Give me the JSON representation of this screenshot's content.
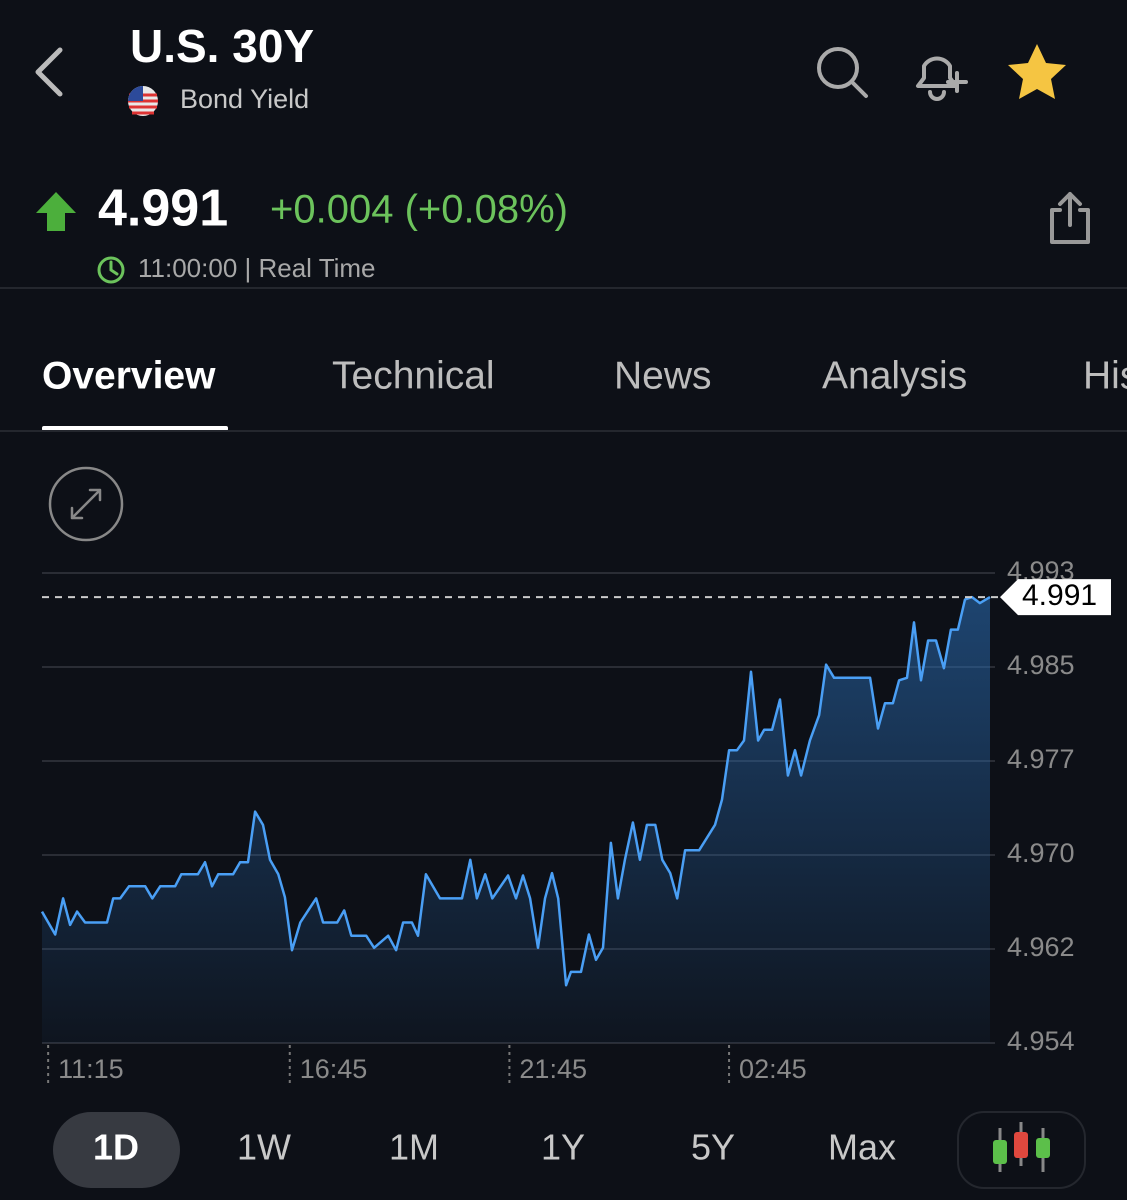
{
  "header": {
    "title": "U.S. 30Y",
    "subtitle": "Bond Yield"
  },
  "quote": {
    "price": "4.991",
    "change": "+0.004 (+0.08%)",
    "time": "11:00:00 | Real Time"
  },
  "tabs": [
    "Overview",
    "Technical",
    "News",
    "Analysis",
    "His"
  ],
  "ranges": [
    "1D",
    "1W",
    "1M",
    "1Y",
    "5Y",
    "Max"
  ],
  "chart_data": {
    "type": "line",
    "x": [
      -0.14,
      0.16,
      0.34,
      0.5,
      0.66,
      0.84,
      1.34,
      1.48,
      1.64,
      1.84,
      2.21,
      2.37,
      2.55,
      2.89,
      3.03,
      3.41,
      3.57,
      3.73,
      3.87,
      4.21,
      4.37,
      4.55,
      4.71,
      4.89,
      5.05,
      5.24,
      5.39,
      5.55,
      5.74,
      5.92,
      6.1,
      6.26,
      6.58,
      6.74,
      6.9,
      7.24,
      7.42,
      7.74,
      7.92,
      8.08,
      8.28,
      8.42,
      8.6,
      8.92,
      9.42,
      9.61,
      9.76,
      9.95,
      10.11,
      10.47,
      10.65,
      10.81,
      10.97,
      11.15,
      11.31,
      11.47,
      11.61,
      11.79,
      11.9,
      12.13,
      12.31,
      12.47,
      12.63,
      12.81,
      12.97,
      13.13,
      13.31,
      13.47,
      13.63,
      13.82,
      13.98,
      14.16,
      14.32,
      14.5,
      14.82,
      15.18,
      15.34,
      15.5,
      15.68,
      15.84,
      16.0,
      16.16,
      16.3,
      16.48,
      16.66,
      16.84,
      17.0,
      17.14,
      17.34,
      17.55,
      17.71,
      17.89,
      18.71,
      18.89,
      19.05,
      19.23,
      19.37,
      19.55,
      19.71,
      19.87,
      20.03,
      20.21,
      20.39,
      20.55,
      20.71,
      20.87,
      21.03,
      21.21,
      21.44
    ],
    "series": [
      {
        "name": "U.S. 30Y",
        "color": "#4a9ff5",
        "values": [
          4.9649,
          4.963,
          4.966,
          4.9638,
          4.9649,
          4.964,
          4.964,
          4.966,
          4.966,
          4.967,
          4.967,
          4.966,
          4.967,
          4.967,
          4.968,
          4.968,
          4.969,
          4.967,
          4.968,
          4.968,
          4.969,
          4.969,
          4.9732,
          4.9721,
          4.9692,
          4.968,
          4.9661,
          4.9617,
          4.964,
          4.965,
          4.966,
          4.964,
          4.964,
          4.965,
          4.9629,
          4.9629,
          4.9619,
          4.9629,
          4.9617,
          4.964,
          4.964,
          4.9629,
          4.968,
          4.966,
          4.966,
          4.9692,
          4.966,
          4.968,
          4.966,
          4.9679,
          4.966,
          4.9679,
          4.966,
          4.9619,
          4.966,
          4.9681,
          4.966,
          4.9588,
          4.9599,
          4.9599,
          4.963,
          4.9609,
          4.9619,
          4.9706,
          4.966,
          4.9692,
          4.9723,
          4.9692,
          4.9721,
          4.9721,
          4.9692,
          4.9681,
          4.966,
          4.97,
          4.97,
          4.9721,
          4.9742,
          4.9783,
          4.9783,
          4.9791,
          4.9848,
          4.9791,
          4.98,
          4.98,
          4.9825,
          4.9762,
          4.9783,
          4.9762,
          4.9791,
          4.9812,
          4.9854,
          4.9843,
          4.9843,
          4.9801,
          4.9822,
          4.9822,
          4.9841,
          4.9843,
          4.9889,
          4.9841,
          4.9874,
          4.9874,
          4.9851,
          4.9883,
          4.9883,
          4.9908,
          4.991,
          4.9905,
          4.991
        ]
      }
    ],
    "xlim": [
      -0.14,
      21.44
    ],
    "xticks": [
      {
        "value": 0,
        "label": "11:15"
      },
      {
        "value": 5.5,
        "label": "16:45"
      },
      {
        "value": 10.5,
        "label": "21:45"
      },
      {
        "value": 15.5,
        "label": "02:45"
      }
    ],
    "ylim": [
      4.954,
      4.993
    ],
    "yticks": [
      {
        "value": 4.954,
        "label": "4.954"
      },
      {
        "value": 4.9618,
        "label": "4.962"
      },
      {
        "value": 4.9696,
        "label": "4.970"
      },
      {
        "value": 4.9774,
        "label": "4.977"
      },
      {
        "value": 4.9852,
        "label": "4.985"
      },
      {
        "value": 4.993,
        "label": "4.993"
      }
    ],
    "grid": true
  }
}
